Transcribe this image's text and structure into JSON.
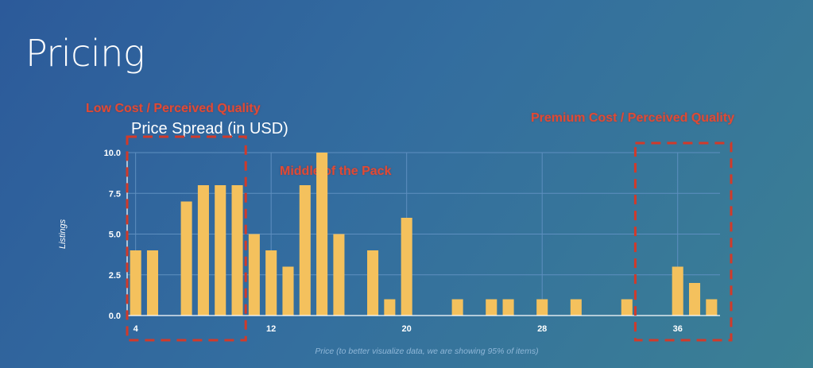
{
  "slide": {
    "title": "Pricing"
  },
  "annotations": {
    "low": "Low Cost / Perceived Quality",
    "middle": "Middle of the Pack",
    "premium": "Premium Cost / Perceived Quality"
  },
  "colors": {
    "bar": "#f4c15d",
    "highlight": "#d13a2a",
    "grid": "#5e8fc0",
    "axis": "#ffffff"
  },
  "chart_data": {
    "type": "bar",
    "title": "Price Spread (in USD)",
    "xlabel": "Price (to better visualize data, we are showing 95% of items)",
    "ylabel": "Listings",
    "xlim": [
      3.5,
      38.5
    ],
    "ylim": [
      0,
      10
    ],
    "xticks": [
      4,
      12,
      20,
      28,
      36
    ],
    "yticks": [
      "0.0",
      "2.5",
      "5.0",
      "7.5",
      "10.0"
    ],
    "grid": true,
    "x": [
      4,
      5,
      7,
      8,
      9,
      10,
      11,
      12,
      13,
      14,
      15,
      16,
      18,
      19,
      20,
      23,
      25,
      26,
      28,
      30,
      33,
      36,
      37,
      38
    ],
    "values": [
      4,
      4,
      7,
      8,
      8,
      8,
      5,
      4,
      3,
      8,
      10,
      5,
      4,
      1,
      6,
      1,
      1,
      1,
      1,
      1,
      1,
      3,
      2,
      1
    ],
    "highlight_ranges": [
      [
        3.5,
        10.5
      ],
      [
        33.5,
        38.5
      ]
    ]
  }
}
